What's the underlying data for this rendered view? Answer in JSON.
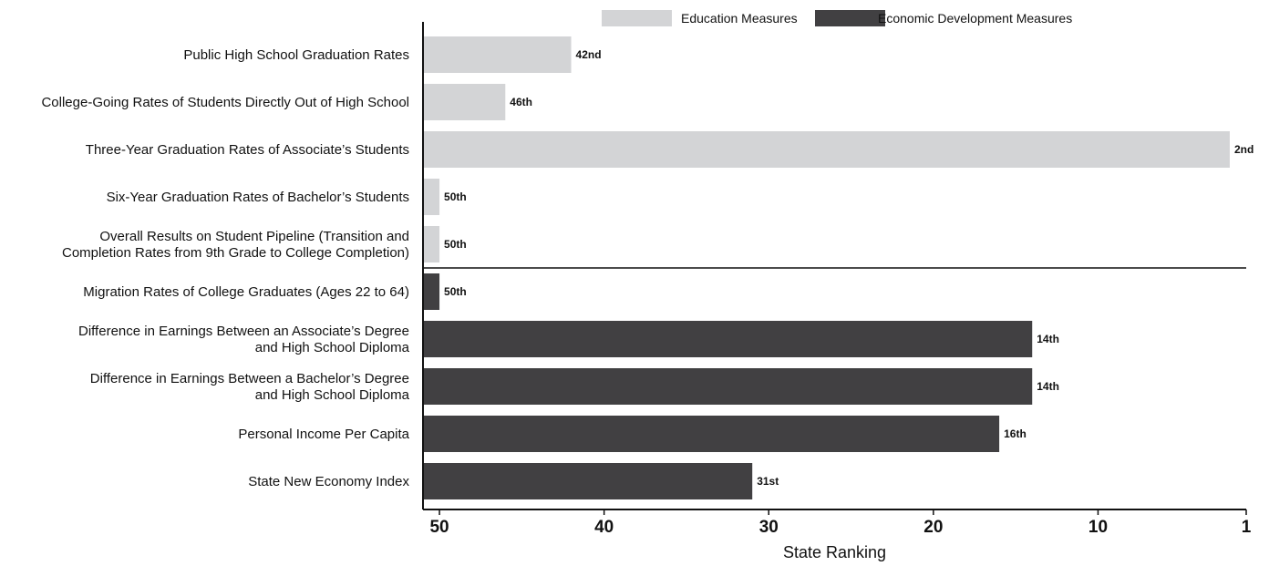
{
  "chart_data": {
    "type": "bar",
    "orientation": "horizontal",
    "xlabel": "State Ranking",
    "xlim": [
      51,
      1
    ],
    "x_ticks": [
      50,
      40,
      30,
      20,
      10,
      1
    ],
    "x_tick_labels": [
      "50",
      "40",
      "30",
      "20",
      "10",
      "1"
    ],
    "grid": false,
    "legend_position": "top",
    "series": [
      {
        "name": "Education Measures",
        "color": "#d3d4d6"
      },
      {
        "name": "Economic Development Measures",
        "color": "#414042"
      }
    ],
    "bars": [
      {
        "category": [
          "Public High School Graduation Rates"
        ],
        "value": 42,
        "label": "42nd",
        "series": 0
      },
      {
        "category": [
          "College-Going Rates of Students Directly Out of High School"
        ],
        "value": 46,
        "label": "46th",
        "series": 0
      },
      {
        "category": [
          "Three-Year Graduation Rates of Associate’s Students"
        ],
        "value": 2,
        "label": "2nd",
        "series": 0
      },
      {
        "category": [
          "Six-Year Graduation Rates of Bachelor’s Students"
        ],
        "value": 50,
        "label": "50th",
        "series": 0
      },
      {
        "category": [
          "Overall Results on Student Pipeline (Transition and",
          "Completion Rates from 9th Grade to College Completion)"
        ],
        "value": 50,
        "label": "50th",
        "series": 0
      },
      {
        "category": [
          "Migration Rates of College Graduates (Ages 22 to 64)"
        ],
        "value": 50,
        "label": "50th",
        "series": 1
      },
      {
        "category": [
          "Difference in Earnings Between an Associate’s Degree",
          "and High School Diploma"
        ],
        "value": 14,
        "label": "14th",
        "series": 1
      },
      {
        "category": [
          "Difference in Earnings Between a Bachelor’s Degree",
          "and High School Diploma"
        ],
        "value": 14,
        "label": "14th",
        "series": 1
      },
      {
        "category": [
          "Personal Income Per Capita"
        ],
        "value": 16,
        "label": "16th",
        "series": 1
      },
      {
        "category": [
          "State New Economy Index"
        ],
        "value": 31,
        "label": "31st",
        "series": 1
      }
    ]
  }
}
